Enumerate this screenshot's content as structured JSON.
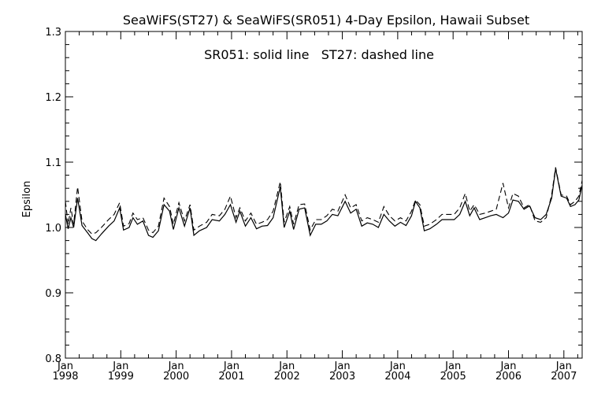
{
  "chart_data": {
    "type": "line",
    "title": "SeaWiFS(ST27) & SeaWiFS(SR051) 4-Day Epsilon, Hawaii Subset",
    "annotation": "SR051: solid line   ST27: dashed line",
    "ylabel": "Epsilon",
    "ylim": [
      0.8,
      1.3
    ],
    "y_ticks": [
      "0.8",
      "0.9",
      "1.0",
      "1.1",
      "1.2",
      "1.3"
    ],
    "xlim": [
      1998.0,
      2007.33
    ],
    "x_ticks": [
      {
        "x": 1998,
        "month": "Jan",
        "year": "1998"
      },
      {
        "x": 1999,
        "month": "Jan",
        "year": "1999"
      },
      {
        "x": 2000,
        "month": "Jan",
        "year": "2000"
      },
      {
        "x": 2001,
        "month": "Jan",
        "year": "2001"
      },
      {
        "x": 2002,
        "month": "Jan",
        "year": "2002"
      },
      {
        "x": 2003,
        "month": "Jan",
        "year": "2003"
      },
      {
        "x": 2004,
        "month": "Jan",
        "year": "2004"
      },
      {
        "x": 2005,
        "month": "Jan",
        "year": "2005"
      },
      {
        "x": 2006,
        "month": "Jan",
        "year": "2006"
      },
      {
        "x": 2007,
        "month": "Jan",
        "year": "2007"
      }
    ],
    "grid": false,
    "series": [
      {
        "style": "solid",
        "points": [
          [
            1998.0,
            1.02
          ],
          [
            1998.05,
            0.998
          ],
          [
            1998.1,
            1.015
          ],
          [
            1998.15,
            1.0
          ],
          [
            1998.22,
            1.045
          ],
          [
            1998.3,
            1.003
          ],
          [
            1998.4,
            0.992
          ],
          [
            1998.48,
            0.983
          ],
          [
            1998.55,
            0.98
          ],
          [
            1998.65,
            0.99
          ],
          [
            1998.78,
            1.002
          ],
          [
            1998.88,
            1.01
          ],
          [
            1998.98,
            1.03
          ],
          [
            1999.05,
            0.996
          ],
          [
            1999.15,
            1.0
          ],
          [
            1999.22,
            1.015
          ],
          [
            1999.3,
            1.005
          ],
          [
            1999.4,
            1.01
          ],
          [
            1999.5,
            0.988
          ],
          [
            1999.58,
            0.985
          ],
          [
            1999.68,
            0.995
          ],
          [
            1999.78,
            1.035
          ],
          [
            1999.88,
            1.025
          ],
          [
            1999.95,
            0.997
          ],
          [
            2000.05,
            1.03
          ],
          [
            2000.15,
            1.002
          ],
          [
            2000.25,
            1.03
          ],
          [
            2000.32,
            0.988
          ],
          [
            2000.42,
            0.995
          ],
          [
            2000.55,
            1.0
          ],
          [
            2000.65,
            1.012
          ],
          [
            2000.78,
            1.01
          ],
          [
            2000.88,
            1.02
          ],
          [
            2000.98,
            1.035
          ],
          [
            2001.08,
            1.008
          ],
          [
            2001.15,
            1.025
          ],
          [
            2001.25,
            1.002
          ],
          [
            2001.35,
            1.015
          ],
          [
            2001.45,
            0.998
          ],
          [
            2001.55,
            1.002
          ],
          [
            2001.65,
            1.003
          ],
          [
            2001.75,
            1.015
          ],
          [
            2001.88,
            1.062
          ],
          [
            2001.95,
            1.0
          ],
          [
            2002.05,
            1.025
          ],
          [
            2002.12,
            0.997
          ],
          [
            2002.22,
            1.028
          ],
          [
            2002.32,
            1.03
          ],
          [
            2002.42,
            0.988
          ],
          [
            2002.52,
            1.005
          ],
          [
            2002.62,
            1.005
          ],
          [
            2002.72,
            1.01
          ],
          [
            2002.82,
            1.02
          ],
          [
            2002.92,
            1.018
          ],
          [
            2003.05,
            1.04
          ],
          [
            2003.15,
            1.022
          ],
          [
            2003.25,
            1.028
          ],
          [
            2003.35,
            1.002
          ],
          [
            2003.45,
            1.007
          ],
          [
            2003.55,
            1.005
          ],
          [
            2003.65,
            1.0
          ],
          [
            2003.75,
            1.02
          ],
          [
            2003.85,
            1.01
          ],
          [
            2003.95,
            1.002
          ],
          [
            2004.05,
            1.008
          ],
          [
            2004.15,
            1.003
          ],
          [
            2004.25,
            1.018
          ],
          [
            2004.32,
            1.04
          ],
          [
            2004.4,
            1.03
          ],
          [
            2004.48,
            0.995
          ],
          [
            2004.58,
            0.998
          ],
          [
            2004.7,
            1.005
          ],
          [
            2004.8,
            1.012
          ],
          [
            2004.92,
            1.012
          ],
          [
            2005.02,
            1.012
          ],
          [
            2005.12,
            1.02
          ],
          [
            2005.22,
            1.04
          ],
          [
            2005.3,
            1.018
          ],
          [
            2005.38,
            1.03
          ],
          [
            2005.48,
            1.012
          ],
          [
            2005.58,
            1.015
          ],
          [
            2005.68,
            1.018
          ],
          [
            2005.78,
            1.02
          ],
          [
            2005.9,
            1.015
          ],
          [
            2006.0,
            1.022
          ],
          [
            2006.08,
            1.042
          ],
          [
            2006.18,
            1.04
          ],
          [
            2006.28,
            1.028
          ],
          [
            2006.38,
            1.033
          ],
          [
            2006.48,
            1.015
          ],
          [
            2006.58,
            1.012
          ],
          [
            2006.68,
            1.02
          ],
          [
            2006.78,
            1.045
          ],
          [
            2006.85,
            1.09
          ],
          [
            2006.95,
            1.048
          ],
          [
            2007.05,
            1.045
          ],
          [
            2007.12,
            1.032
          ],
          [
            2007.2,
            1.035
          ],
          [
            2007.27,
            1.042
          ],
          [
            2007.33,
            1.065
          ]
        ]
      },
      {
        "style": "dashed",
        "points": [
          [
            1998.0,
            1.04
          ],
          [
            1998.05,
            1.005
          ],
          [
            1998.1,
            1.03
          ],
          [
            1998.15,
            1.005
          ],
          [
            1998.22,
            1.062
          ],
          [
            1998.3,
            1.01
          ],
          [
            1998.4,
            0.997
          ],
          [
            1998.48,
            0.99
          ],
          [
            1998.55,
            0.992
          ],
          [
            1998.65,
            1.0
          ],
          [
            1998.78,
            1.012
          ],
          [
            1998.88,
            1.02
          ],
          [
            1998.98,
            1.038
          ],
          [
            1999.05,
            1.002
          ],
          [
            1999.15,
            1.006
          ],
          [
            1999.22,
            1.022
          ],
          [
            1999.3,
            1.012
          ],
          [
            1999.4,
            1.015
          ],
          [
            1999.5,
            0.996
          ],
          [
            1999.58,
            0.992
          ],
          [
            1999.68,
            1.002
          ],
          [
            1999.78,
            1.045
          ],
          [
            1999.88,
            1.032
          ],
          [
            1999.95,
            1.005
          ],
          [
            2000.05,
            1.038
          ],
          [
            2000.15,
            1.01
          ],
          [
            2000.25,
            1.035
          ],
          [
            2000.32,
            0.996
          ],
          [
            2000.42,
            1.002
          ],
          [
            2000.55,
            1.008
          ],
          [
            2000.65,
            1.02
          ],
          [
            2000.78,
            1.018
          ],
          [
            2000.88,
            1.028
          ],
          [
            2000.98,
            1.048
          ],
          [
            2001.08,
            1.015
          ],
          [
            2001.15,
            1.03
          ],
          [
            2001.25,
            1.01
          ],
          [
            2001.35,
            1.022
          ],
          [
            2001.45,
            1.005
          ],
          [
            2001.55,
            1.008
          ],
          [
            2001.65,
            1.012
          ],
          [
            2001.75,
            1.025
          ],
          [
            2001.88,
            1.07
          ],
          [
            2001.95,
            1.008
          ],
          [
            2002.05,
            1.032
          ],
          [
            2002.12,
            1.005
          ],
          [
            2002.22,
            1.035
          ],
          [
            2002.32,
            1.036
          ],
          [
            2002.42,
            0.996
          ],
          [
            2002.52,
            1.012
          ],
          [
            2002.62,
            1.012
          ],
          [
            2002.72,
            1.018
          ],
          [
            2002.82,
            1.028
          ],
          [
            2002.92,
            1.025
          ],
          [
            2003.05,
            1.05
          ],
          [
            2003.15,
            1.03
          ],
          [
            2003.25,
            1.035
          ],
          [
            2003.35,
            1.01
          ],
          [
            2003.45,
            1.015
          ],
          [
            2003.55,
            1.012
          ],
          [
            2003.65,
            1.008
          ],
          [
            2003.75,
            1.032
          ],
          [
            2003.85,
            1.018
          ],
          [
            2003.95,
            1.01
          ],
          [
            2004.05,
            1.015
          ],
          [
            2004.15,
            1.01
          ],
          [
            2004.25,
            1.025
          ],
          [
            2004.32,
            1.042
          ],
          [
            2004.4,
            1.035
          ],
          [
            2004.48,
            1.002
          ],
          [
            2004.58,
            1.005
          ],
          [
            2004.7,
            1.012
          ],
          [
            2004.8,
            1.02
          ],
          [
            2004.92,
            1.02
          ],
          [
            2005.02,
            1.02
          ],
          [
            2005.12,
            1.03
          ],
          [
            2005.22,
            1.052
          ],
          [
            2005.3,
            1.025
          ],
          [
            2005.38,
            1.035
          ],
          [
            2005.48,
            1.02
          ],
          [
            2005.58,
            1.022
          ],
          [
            2005.68,
            1.025
          ],
          [
            2005.78,
            1.028
          ],
          [
            2005.9,
            1.068
          ],
          [
            2006.0,
            1.03
          ],
          [
            2006.08,
            1.052
          ],
          [
            2006.18,
            1.048
          ],
          [
            2006.28,
            1.03
          ],
          [
            2006.38,
            1.035
          ],
          [
            2006.48,
            1.01
          ],
          [
            2006.58,
            1.008
          ],
          [
            2006.68,
            1.015
          ],
          [
            2006.78,
            1.05
          ],
          [
            2006.85,
            1.092
          ],
          [
            2006.95,
            1.05
          ],
          [
            2007.05,
            1.048
          ],
          [
            2007.12,
            1.035
          ],
          [
            2007.2,
            1.04
          ],
          [
            2007.27,
            1.048
          ],
          [
            2007.33,
            1.072
          ]
        ]
      }
    ]
  }
}
